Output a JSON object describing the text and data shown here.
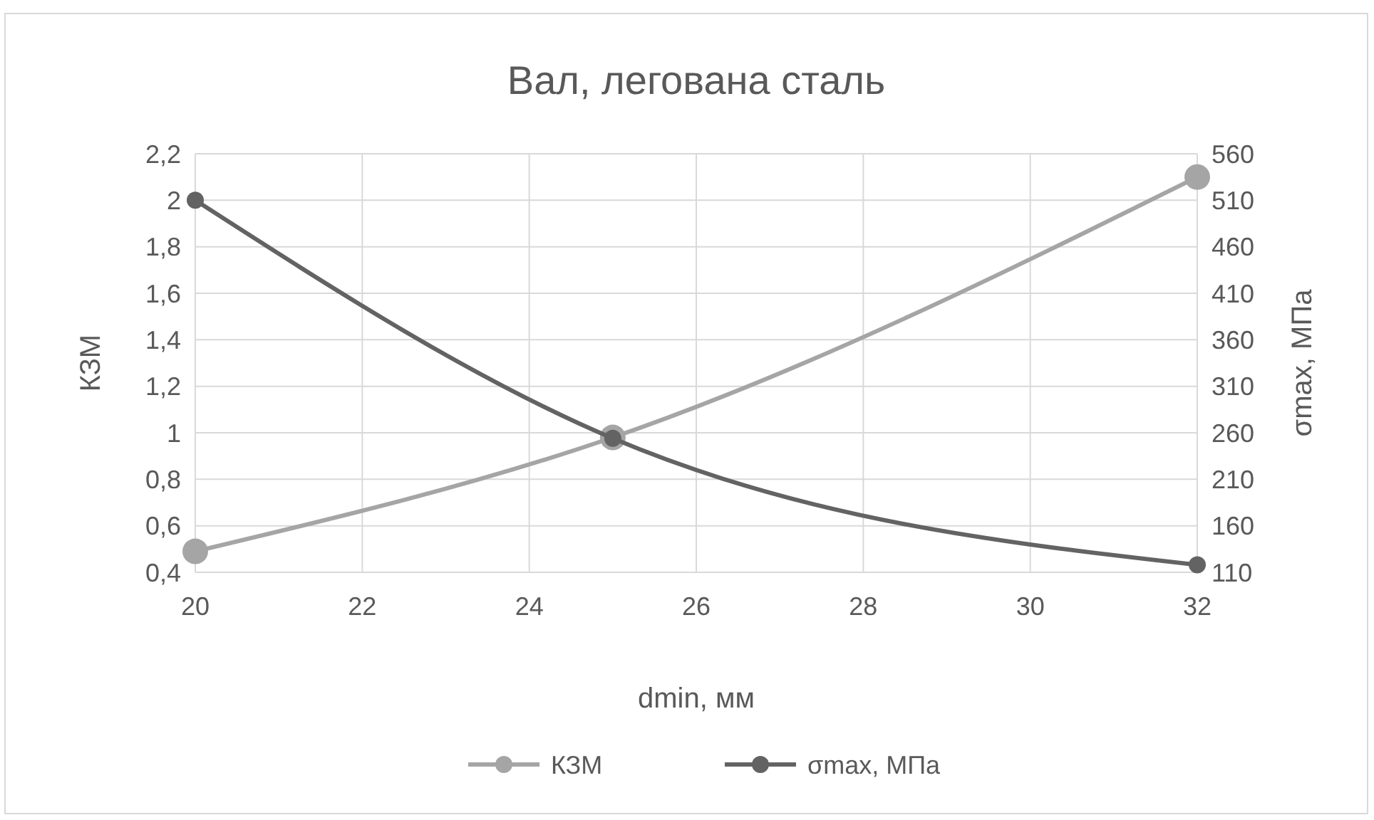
{
  "chart_data": {
    "type": "line",
    "title": "Вал, легована сталь",
    "xlabel": "dmin, мм",
    "ylabel": "КЗМ",
    "y2label": "σmax, МПа",
    "x": [
      20,
      25,
      32
    ],
    "series": [
      {
        "name": "КЗМ",
        "color": "#a5a5a5",
        "values": [
          0.49,
          0.98,
          2.1
        ]
      },
      {
        "name": "σmax, МПа",
        "color": "#636363",
        "axis": "y2",
        "values": [
          510,
          254,
          118
        ]
      }
    ],
    "xlim": [
      20,
      32
    ],
    "xticks": [
      20,
      22,
      24,
      26,
      28,
      30,
      32
    ],
    "ylim": [
      0.4,
      2.2
    ],
    "yticks": [
      {
        "value": 0.4,
        "label": "0,4"
      },
      {
        "value": 0.6,
        "label": "0,6"
      },
      {
        "value": 0.8,
        "label": "0,8"
      },
      1,
      {
        "value": 1.2,
        "label": "1,2"
      },
      {
        "value": 1.4,
        "label": "1,4"
      },
      {
        "value": 1.6,
        "label": "1,6"
      },
      {
        "value": 1.8,
        "label": "1,8"
      },
      2,
      {
        "value": 2.2,
        "label": "2,2"
      }
    ],
    "y2lim": [
      110,
      560
    ],
    "y2ticks": [
      110,
      160,
      210,
      260,
      310,
      360,
      410,
      460,
      510,
      560
    ],
    "grid": true,
    "legend": "bottom",
    "marker": "circle",
    "line_style": "solid"
  }
}
